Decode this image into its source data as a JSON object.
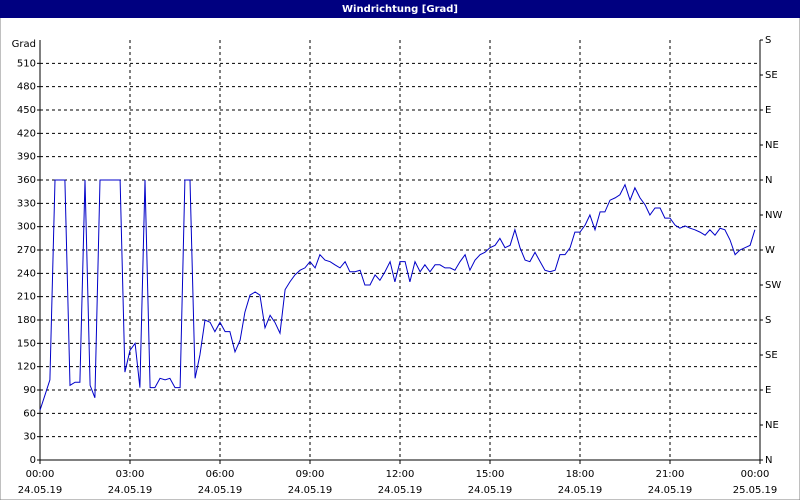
{
  "chart_data": {
    "type": "line",
    "title": "Windrichtung [Grad]",
    "ylabel": "Grad",
    "color": "#0000c8",
    "grid": true,
    "xlim": [
      0,
      24
    ],
    "xticks": [
      {
        "value": 0,
        "label": "00:00"
      },
      {
        "value": 3,
        "label": "03:00"
      },
      {
        "value": 6,
        "label": "06:00"
      },
      {
        "value": 9,
        "label": "09:00"
      },
      {
        "value": 12,
        "label": "12:00"
      },
      {
        "value": 15,
        "label": "15:00"
      },
      {
        "value": 18,
        "label": "18:00"
      },
      {
        "value": 21,
        "label": "21:00"
      },
      {
        "value": 24,
        "label": "00:00"
      }
    ],
    "xtick_dates": [
      "24.05.19",
      "24.05.19",
      "24.05.19",
      "24.05.19",
      "24.05.19",
      "24.05.19",
      "24.05.19",
      "24.05.19",
      "25.05.19"
    ],
    "ylim": [
      0,
      540
    ],
    "yticks": [
      0,
      30,
      60,
      90,
      120,
      150,
      180,
      210,
      240,
      270,
      300,
      330,
      360,
      390,
      420,
      450,
      480,
      510
    ],
    "y2lim": [
      0,
      540
    ],
    "y2ticks": [
      {
        "value": 0,
        "label": "N"
      },
      {
        "value": 45,
        "label": "NE"
      },
      {
        "value": 90,
        "label": "E"
      },
      {
        "value": 135,
        "label": "SE"
      },
      {
        "value": 180,
        "label": "S"
      },
      {
        "value": 225,
        "label": "SW"
      },
      {
        "value": 270,
        "label": "W"
      },
      {
        "value": 315,
        "label": "NW"
      },
      {
        "value": 360,
        "label": "N"
      },
      {
        "value": 405,
        "label": "NE"
      },
      {
        "value": 450,
        "label": "E"
      },
      {
        "value": 495,
        "label": "SE"
      },
      {
        "value": 540,
        "label": "S"
      }
    ],
    "x": [
      0,
      0.17,
      0.33,
      0.5,
      0.83,
      1.0,
      1.17,
      1.33,
      1.5,
      1.67,
      1.83,
      2.0,
      2.67,
      2.83,
      3.0,
      3.17,
      3.33,
      3.5,
      3.67,
      3.83,
      4.0,
      4.17,
      4.33,
      4.5,
      4.67,
      4.83,
      5.0,
      5.17,
      5.33,
      5.5,
      5.67,
      5.83,
      6.0,
      6.17,
      6.33,
      6.5,
      6.67,
      6.83,
      7.0,
      7.17,
      7.33,
      7.5,
      7.67,
      7.83,
      8.0,
      8.17,
      8.33,
      8.5,
      8.67,
      8.83,
      9.0,
      9.17,
      9.33,
      9.5,
      9.67,
      9.83,
      10.0,
      10.17,
      10.33,
      10.5,
      10.67,
      10.83,
      11.0,
      11.17,
      11.33,
      11.5,
      11.67,
      11.83,
      12.0,
      12.17,
      12.33,
      12.5,
      12.67,
      12.83,
      13.0,
      13.17,
      13.33,
      13.5,
      13.67,
      13.83,
      14.0,
      14.17,
      14.33,
      14.5,
      14.67,
      14.83,
      15.0,
      15.17,
      15.33,
      15.5,
      15.67,
      15.83,
      16.0,
      16.17,
      16.33,
      16.5,
      16.67,
      16.83,
      17.0,
      17.17,
      17.33,
      17.5,
      17.67,
      17.83,
      18.0,
      18.17,
      18.33,
      18.5,
      18.67,
      18.83,
      19.0,
      19.17,
      19.33,
      19.5,
      19.67,
      19.83,
      20.0,
      20.17,
      20.33,
      20.5,
      20.67,
      20.83,
      21.0,
      21.17,
      21.33,
      21.5,
      21.67,
      21.83,
      22.0,
      22.17,
      22.33,
      22.5,
      22.67,
      22.83,
      23.0,
      23.17,
      23.33,
      23.5,
      23.67,
      23.83
    ],
    "values": [
      64,
      84,
      103,
      360,
      360,
      96,
      100,
      100,
      360,
      96,
      80,
      360,
      360,
      113,
      141,
      150,
      93,
      360,
      93,
      93,
      105,
      103,
      105,
      93,
      93,
      360,
      360,
      105,
      135,
      180,
      177,
      165,
      177,
      165,
      165,
      139,
      154,
      190,
      212,
      216,
      212,
      170,
      186,
      177,
      163,
      219,
      229,
      238,
      244,
      247,
      255,
      247,
      264,
      257,
      255,
      251,
      247,
      255,
      242,
      242,
      244,
      225,
      225,
      238,
      231,
      242,
      255,
      229,
      255,
      255,
      229,
      255,
      242,
      251,
      242,
      251,
      251,
      247,
      247,
      244,
      255,
      264,
      244,
      257,
      264,
      267,
      273,
      276,
      285,
      273,
      276,
      296,
      273,
      257,
      255,
      267,
      255,
      244,
      242,
      244,
      264,
      264,
      273,
      293,
      293,
      302,
      315,
      296,
      319,
      319,
      334,
      337,
      341,
      354,
      334,
      350,
      337,
      328,
      315,
      324,
      324,
      311,
      311,
      302,
      298,
      301,
      298,
      296,
      293,
      289,
      296,
      289,
      298,
      296,
      283,
      264,
      270,
      273,
      276,
      296
    ]
  }
}
